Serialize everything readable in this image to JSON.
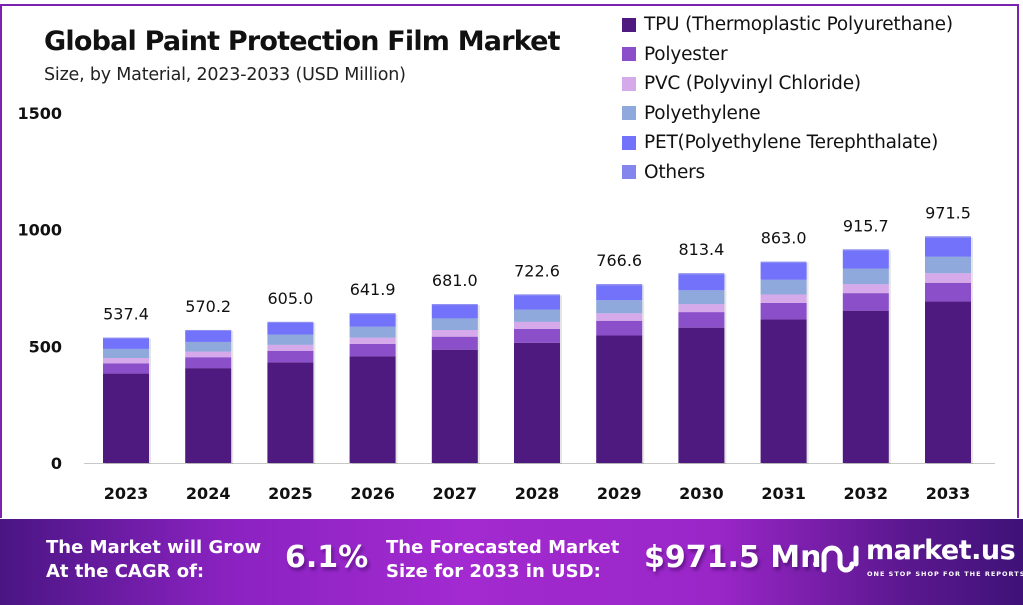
{
  "header": {
    "title": "Global Paint Protection Film Market",
    "subtitle": "Size, by Material, 2023-2033 (USD Million)"
  },
  "chart_data": {
    "type": "bar",
    "stacked": true,
    "title": "Global Paint Protection Film Market",
    "subtitle": "Size, by Material, 2023-2033 (USD Million)",
    "xlabel": "",
    "ylabel": "",
    "ylim": [
      0,
      1500
    ],
    "yticks": [
      0,
      500,
      1000,
      1500
    ],
    "grid": false,
    "legend_position": "top-right",
    "categories": [
      "2023",
      "2024",
      "2025",
      "2026",
      "2027",
      "2028",
      "2029",
      "2030",
      "2031",
      "2032",
      "2033"
    ],
    "totals": [
      537.4,
      570.2,
      605.0,
      641.9,
      681.0,
      722.6,
      766.6,
      813.4,
      863.0,
      915.7,
      971.5
    ],
    "total_labels": [
      "537.4",
      "570.2",
      "605.0",
      "641.9",
      "681.0",
      "722.6",
      "766.6",
      "813.4",
      "863.0",
      "915.7",
      "971.5"
    ],
    "series": [
      {
        "name": "TPU (Thermoplastic Polyurethane)",
        "color": "#4e1a80",
        "values": [
          383.2,
          406.6,
          431.4,
          457.7,
          485.6,
          515.2,
          546.6,
          580.0,
          615.3,
          652.9,
          692.7
        ]
      },
      {
        "name": "Polyester",
        "color": "#8b4fca",
        "values": [
          44.1,
          46.8,
          49.6,
          52.6,
          55.8,
          59.3,
          62.9,
          66.7,
          70.8,
          75.1,
          79.7
        ]
      },
      {
        "name": "PVC (Polyvinyl Chloride)",
        "color": "#d6a9ea",
        "values": [
          22.6,
          23.9,
          25.4,
          27.0,
          28.6,
          30.3,
          32.2,
          34.2,
          36.2,
          38.5,
          40.8
        ]
      },
      {
        "name": "Polyethylene",
        "color": "#8fa9dc",
        "values": [
          39.2,
          41.6,
          44.2,
          46.9,
          49.7,
          52.8,
          56.0,
          59.4,
          63.0,
          66.8,
          70.9
        ]
      },
      {
        "name": "PET(Polyethylene Terephthalate)",
        "color": "#7272fa",
        "values": [
          45.1,
          47.9,
          50.8,
          53.9,
          57.2,
          60.7,
          64.4,
          68.3,
          72.5,
          76.9,
          81.6
        ]
      },
      {
        "name": "Others",
        "color": "#8585ee",
        "values": [
          3.2,
          3.4,
          3.6,
          3.8,
          4.1,
          4.3,
          4.5,
          4.8,
          5.2,
          5.5,
          5.8
        ]
      }
    ]
  },
  "banner": {
    "cagr_text_line1": "The Market will Grow",
    "cagr_text_line2": "At the CAGR of:",
    "cagr_value": "6.1%",
    "forecast_text_line1": "The Forecasted Market",
    "forecast_text_line2": "Size for 2033 in USD:",
    "forecast_value": "$971.5 Mn",
    "brand_icon": "market-us-logo-icon",
    "brand_name": "market.us",
    "brand_tagline": "ONE STOP SHOP FOR THE REPORTS"
  }
}
